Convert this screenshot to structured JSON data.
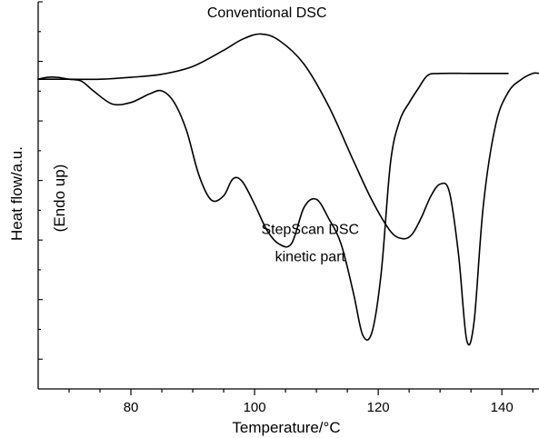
{
  "chart_data": {
    "type": "line",
    "xlabel": "Temperature/°C",
    "ylabel": "Heat flow/a.u.",
    "ylabel_secondary": "(Endo up)",
    "xlim": [
      65,
      146
    ],
    "ylim": [
      0,
      100
    ],
    "x_ticks": [
      80,
      100,
      120,
      140
    ],
    "grid": false,
    "annotations": [
      {
        "text": "Conventional DSC",
        "x": 102,
        "y": 96
      },
      {
        "text": "StepScan DSC",
        "x": 109,
        "y": 40
      },
      {
        "text": "kinetic part",
        "x": 109,
        "y": 33
      }
    ],
    "series": [
      {
        "values": [
          [
            65,
            80.0
          ],
          [
            70,
            80.0
          ],
          [
            75,
            80.0
          ],
          [
            80,
            80.5
          ],
          [
            85,
            81.3
          ],
          [
            90,
            83.3
          ],
          [
            95,
            87.5
          ],
          [
            98,
            90.3
          ],
          [
            101,
            91.7
          ],
          [
            104,
            90.0
          ],
          [
            108,
            83.9
          ],
          [
            112,
            73.0
          ],
          [
            116,
            58.9
          ],
          [
            119,
            48.7
          ],
          [
            122,
            40.7
          ],
          [
            124,
            38.8
          ],
          [
            125.5,
            40.0
          ],
          [
            127,
            44.4
          ],
          [
            128.5,
            49.8
          ],
          [
            130,
            52.9
          ],
          [
            131.5,
            50.9
          ],
          [
            133,
            34.5
          ],
          [
            134.3,
            12.7
          ],
          [
            135.5,
            17.4
          ],
          [
            137,
            47.5
          ],
          [
            139,
            68.3
          ],
          [
            141,
            76.6
          ],
          [
            143,
            79.8
          ],
          [
            145,
            81.5
          ],
          [
            146,
            81.5
          ]
        ]
      },
      {
        "values": [
          [
            65,
            80.0
          ],
          [
            66.5,
            80.5
          ],
          [
            68,
            80.5
          ],
          [
            70,
            80.0
          ],
          [
            72,
            79.5
          ],
          [
            74,
            76.9
          ],
          [
            77,
            73.6
          ],
          [
            80,
            74.0
          ],
          [
            83,
            76.2
          ],
          [
            85,
            77.0
          ],
          [
            87,
            74.0
          ],
          [
            89,
            66.7
          ],
          [
            91,
            55.2
          ],
          [
            93,
            48.8
          ],
          [
            95,
            49.9
          ],
          [
            96.5,
            54.3
          ],
          [
            98,
            53.6
          ],
          [
            100,
            47.7
          ],
          [
            102,
            41.0
          ],
          [
            104,
            37.4
          ],
          [
            106,
            37.6
          ],
          [
            108,
            46.9
          ],
          [
            110,
            49.0
          ],
          [
            112,
            44.0
          ],
          [
            114,
            37.4
          ],
          [
            116,
            24.7
          ],
          [
            117.5,
            13.9
          ],
          [
            119,
            14.7
          ],
          [
            120.5,
            30.2
          ],
          [
            122,
            58.6
          ],
          [
            123.5,
            69.4
          ],
          [
            125,
            73.9
          ],
          [
            126.5,
            77.7
          ],
          [
            128,
            81.0
          ],
          [
            130,
            81.5
          ],
          [
            135,
            81.5
          ],
          [
            141,
            81.5
          ]
        ]
      }
    ]
  }
}
